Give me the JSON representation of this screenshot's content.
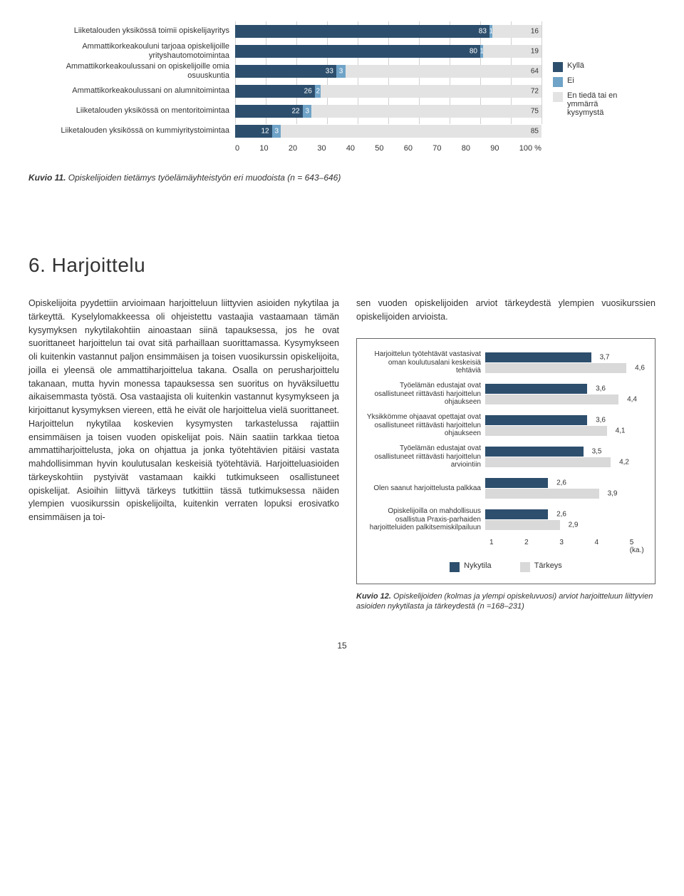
{
  "chart1": {
    "type": "stacked-bar-horizontal",
    "xlim": [
      0,
      100
    ],
    "xticks": [
      0,
      10,
      20,
      30,
      40,
      50,
      60,
      70,
      80,
      90,
      100
    ],
    "xunit": "%",
    "grid_color": "#d0d0d0",
    "series": [
      {
        "key": "kylla",
        "label": "Kyllä",
        "color": "#2d4f6d"
      },
      {
        "key": "ei",
        "label": "Ei",
        "color": "#6fa3c7"
      },
      {
        "key": "entieda",
        "label": "En tiedä tai en ymmärrä kysymystä",
        "color": "#e3e3e3"
      }
    ],
    "rows": [
      {
        "label": "Liiketalouden yksikössä toimii opiskelijayritys",
        "vals": [
          83,
          1,
          16
        ]
      },
      {
        "label": "Ammattikorkeakouluni tarjoaa opiskelijoille yrityshautomotoimintaa",
        "vals": [
          80,
          1,
          19
        ]
      },
      {
        "label": "Ammattikorkeakoulussani on opiskelijoille omia osuuskuntia",
        "vals": [
          33,
          3,
          64
        ]
      },
      {
        "label": "Ammattikorkeakoulussani on alumnitoimintaa",
        "vals": [
          26,
          2,
          72
        ]
      },
      {
        "label": "Liiketalouden yksikössä on mentoritoimintaa",
        "vals": [
          22,
          3,
          75
        ]
      },
      {
        "label": "Liiketalouden yksikössä on kummiyritystoimintaa",
        "vals": [
          12,
          3,
          85
        ]
      }
    ]
  },
  "caption1_bold": "Kuvio 11.",
  "caption1_text": " Opiskelijoiden tietämys työelämäyhteistyön eri muodoista (n = 643–646)",
  "section_heading": "6. Harjoittelu",
  "body_left": "Opiskelijoita pyydettiin arvioimaan harjoitteluun liittyvien asioiden nykytilaa ja tärkeyttä. Kyselylomakkeessa oli ohjeistettu vastaajia vastaamaan tämän kysymyksen nykytilakohtiin ainoastaan siinä tapauksessa, jos he ovat suorittaneet harjoittelun tai ovat sitä parhaillaan suorittamassa. Kysymykseen oli kuitenkin vastannut paljon ensimmäisen ja toisen vuosikurssin opiskelijoita, joilla ei yleensä ole ammattiharjoittelua takana. Osalla on perusharjoittelu takanaan, mutta hyvin monessa tapauksessa sen suoritus on hyväksiluettu aikaisemmasta työstä. Osa vastaajista oli kuitenkin vastannut kysymykseen ja kirjoittanut kysymyksen viereen, että he eivät ole harjoittelua vielä suorittaneet. Harjoittelun nykytilaa koskevien kysymysten tarkastelussa rajattiin ensimmäisen ja toisen vuoden opiskelijat pois. Näin saatiin tarkkaa tietoa ammattiharjoittelusta, joka on ohjattua ja jonka työtehtävien pitäisi vastata mahdollisimman hyvin koulutusalan keskeisiä työtehtäviä. Harjoitteluasioiden tärkeyskohtiin pystyivät vastamaan kaikki tutkimukseen osallistuneet opiskelijat. Asioihin liittyvä tärkeys tutkittiin tässä tutkimuksessa näiden ylempien vuosikurssin opiskelijoilta, kuitenkin verraten lopuksi erosivatko ensimmäisen ja toi-",
  "body_right_intro": "sen vuoden opiskelijoiden arviot tärkeydestä ylempien vuosikurssien opiskelijoiden arvioista.",
  "chart2": {
    "type": "grouped-bar-horizontal",
    "xlim": [
      1,
      5
    ],
    "xticks": [
      "1",
      "2",
      "3",
      "4",
      "5  (ka.)"
    ],
    "xtick_vals": [
      1,
      2,
      3,
      4,
      5
    ],
    "series": [
      {
        "key": "nykytila",
        "label": "Nykytila",
        "color": "#2d4f6d"
      },
      {
        "key": "tarkeys",
        "label": "Tärkeys",
        "color": "#d9d9d9"
      }
    ],
    "rows": [
      {
        "label": "Harjoittelun työtehtävät vastasivat oman koulutusalani keskeisiä tehtäviä",
        "vals": [
          3.7,
          4.6
        ]
      },
      {
        "label": "Työelämän edustajat ovat osallistuneet riittävästi harjoittelun ohjaukseen",
        "vals": [
          3.6,
          4.4
        ]
      },
      {
        "label": "Yksikkömme ohjaavat opettajat ovat osallistuneet riittävästi harjoittelun ohjaukseen",
        "vals": [
          3.6,
          4.1
        ]
      },
      {
        "label": "Työelämän edustajat ovat osallistuneet riittävästi harjoittelun arviointiin",
        "vals": [
          3.5,
          4.2
        ]
      },
      {
        "label": "Olen saanut harjoittelusta palkkaa",
        "vals": [
          2.6,
          3.9
        ]
      },
      {
        "label": "Opiskelijoilla on mahdollisuus osallistua Praxis-parhaiden harjoitteluiden palkitsemiskilpailuun",
        "vals": [
          2.6,
          2.9
        ]
      }
    ]
  },
  "caption2_bold": "Kuvio 12.",
  "caption2_text": " Opiskelijoiden (kolmas ja ylempi opiskeluvuosi) arviot harjoitteluun liittyvien asioiden nykytilasta ja tärkeydestä (n =168–231)",
  "page_number": "15"
}
